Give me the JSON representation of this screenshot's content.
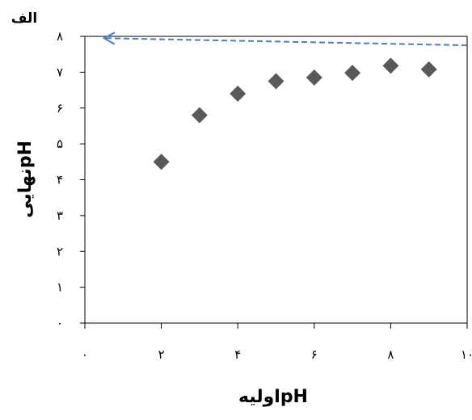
{
  "chart_data": {
    "type": "scatter",
    "panel_label": "الف",
    "xlabel": "pHاولیه",
    "ylabel": "pHنهایی",
    "xlim": [
      0,
      10
    ],
    "ylim": [
      0,
      8
    ],
    "x_ticks": [
      0,
      2,
      4,
      6,
      8,
      10
    ],
    "x_tick_labels": [
      "۰",
      "۲",
      "۴",
      "۶",
      "۸",
      "۱۰"
    ],
    "y_ticks": [
      0,
      1,
      2,
      3,
      4,
      5,
      6,
      7,
      8
    ],
    "y_tick_labels": [
      "۰",
      "۱",
      "۲",
      "۳",
      "۴",
      "۵",
      "۶",
      "۷",
      "۸"
    ],
    "grid": false,
    "series": [
      {
        "marker": "diamond",
        "color": "#595959",
        "x": [
          2,
          3,
          4,
          5,
          6,
          7,
          8,
          9
        ],
        "y": [
          4.5,
          5.8,
          6.4,
          6.75,
          6.85,
          6.98,
          7.18,
          7.08
        ]
      }
    ],
    "reference_line": {
      "style": "dashed",
      "color": "#4a7ebb",
      "arrow": "left",
      "from": [
        10,
        7.75
      ],
      "to": [
        0.5,
        7.95
      ]
    }
  }
}
